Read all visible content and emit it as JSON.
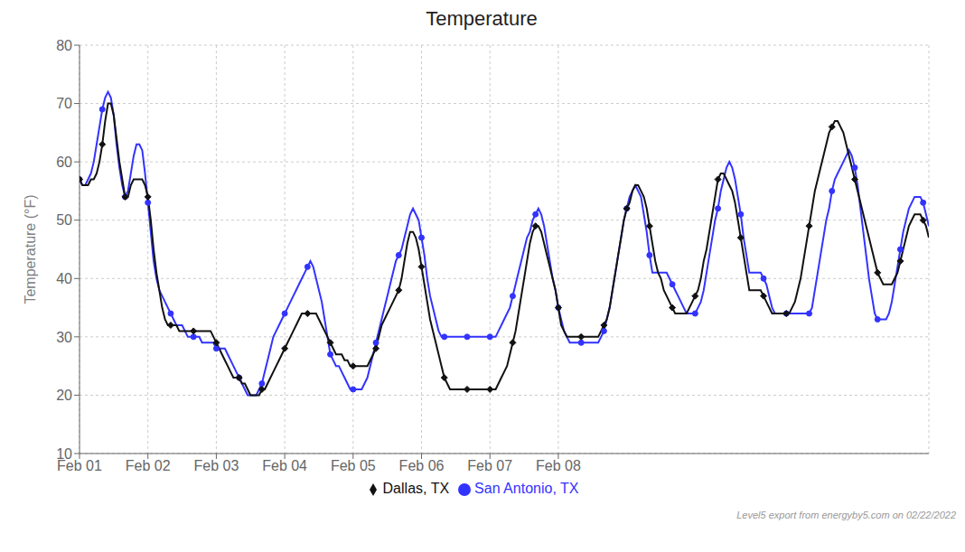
{
  "chart_data": {
    "type": "line",
    "title": "Temperature",
    "y_label": "Temperature (°F)",
    "annotations": [
      "Level5 export from energyby5.com on 02/22/2022"
    ],
    "grid": true,
    "legend": "bottom",
    "xlim": [
      0,
      12.4167
    ],
    "xticks": [
      {
        "value": 0,
        "label": "Feb 01"
      },
      {
        "value": 1,
        "label": "Feb 02"
      },
      {
        "value": 2,
        "label": "Feb 03"
      },
      {
        "value": 3,
        "label": "Feb 04"
      },
      {
        "value": 4,
        "label": "Feb 05"
      },
      {
        "value": 5,
        "label": "Feb 06"
      },
      {
        "value": 6,
        "label": "Feb 07"
      },
      {
        "value": 7,
        "label": "Feb 08"
      }
    ],
    "ylim": [
      10,
      80
    ],
    "yticks": [
      10,
      20,
      30,
      40,
      50,
      60,
      70,
      80
    ],
    "x": [
      0,
      0.0417,
      0.0833,
      0.125,
      0.1667,
      0.2083,
      0.25,
      0.2917,
      0.3333,
      0.375,
      0.4167,
      0.4583,
      0.5,
      0.5417,
      0.5833,
      0.625,
      0.6667,
      0.7083,
      0.75,
      0.7917,
      0.8333,
      0.875,
      0.9167,
      0.9583,
      1,
      1.0417,
      1.0833,
      1.125,
      1.1667,
      1.2083,
      1.25,
      1.2917,
      1.3333,
      1.375,
      1.4167,
      1.4583,
      1.5,
      1.5417,
      1.5833,
      1.625,
      1.6667,
      1.7083,
      1.75,
      1.7917,
      1.8333,
      1.875,
      1.9167,
      1.9583,
      2,
      2.0417,
      2.0833,
      2.125,
      2.1667,
      2.2083,
      2.25,
      2.2917,
      2.3333,
      2.375,
      2.4167,
      2.4583,
      2.5,
      2.5417,
      2.5833,
      2.625,
      2.6667,
      2.7083,
      2.75,
      2.7917,
      2.8333,
      2.875,
      2.9167,
      2.9583,
      3,
      3.0417,
      3.0833,
      3.125,
      3.1667,
      3.2083,
      3.25,
      3.2917,
      3.3333,
      3.375,
      3.4167,
      3.4583,
      3.5,
      3.5417,
      3.5833,
      3.625,
      3.6667,
      3.7083,
      3.75,
      3.7917,
      3.8333,
      3.875,
      3.9167,
      3.9583,
      4,
      4.0417,
      4.0833,
      4.125,
      4.1667,
      4.2083,
      4.25,
      4.2917,
      4.3333,
      4.375,
      4.4167,
      4.4583,
      4.5,
      4.5417,
      4.5833,
      4.625,
      4.6667,
      4.7083,
      4.75,
      4.7917,
      4.8333,
      4.875,
      4.9167,
      4.9583,
      5,
      5.0417,
      5.0833,
      5.125,
      5.1667,
      5.2083,
      5.25,
      5.2917,
      5.3333,
      5.375,
      5.4167,
      5.4583,
      5.5,
      5.5417,
      5.5833,
      5.625,
      5.6667,
      5.7083,
      5.75,
      5.7917,
      5.8333,
      5.875,
      5.9167,
      5.9583,
      6,
      6.0417,
      6.0833,
      6.125,
      6.1667,
      6.2083,
      6.25,
      6.2917,
      6.3333,
      6.375,
      6.4167,
      6.4583,
      6.5,
      6.5417,
      6.5833,
      6.625,
      6.6667,
      6.7083,
      6.75,
      6.7917,
      6.8333,
      6.875,
      6.9167,
      6.9583,
      7,
      7.0417,
      7.0833,
      7.125,
      7.1667,
      7.2083,
      7.25,
      7.2917,
      7.3333,
      7.375,
      7.4167,
      7.4583,
      7.5,
      7.5417,
      7.5833,
      7.625,
      7.6667,
      7.7083,
      7.75,
      7.7917,
      7.8333,
      7.875,
      7.9167,
      7.9583,
      8,
      8.0417,
      8.0833,
      8.125,
      8.1667,
      8.2083,
      8.25,
      8.2917,
      8.3333,
      8.375,
      8.4167,
      8.4583,
      8.5,
      8.5417,
      8.5833,
      8.625,
      8.6667,
      8.7083,
      8.75,
      8.7917,
      8.8333,
      8.875,
      8.9167,
      8.9583,
      9,
      9.0417,
      9.0833,
      9.125,
      9.1667,
      9.2083,
      9.25,
      9.2917,
      9.3333,
      9.375,
      9.4167,
      9.4583,
      9.5,
      9.5417,
      9.5833,
      9.625,
      9.6667,
      9.7083,
      9.75,
      9.7917,
      9.8333,
      9.875,
      9.9167,
      9.9583,
      10,
      10.0417,
      10.0833,
      10.125,
      10.1667,
      10.2083,
      10.25,
      10.2917,
      10.3333,
      10.375,
      10.4167,
      10.4583,
      10.5,
      10.5417,
      10.5833,
      10.625,
      10.6667,
      10.7083,
      10.75,
      10.7917,
      10.8333,
      10.875,
      10.9167,
      10.9583,
      11,
      11.0417,
      11.0833,
      11.125,
      11.1667,
      11.2083,
      11.25,
      11.2917,
      11.3333,
      11.375,
      11.4167,
      11.4583,
      11.5,
      11.5417,
      11.5833,
      11.625,
      11.6667,
      11.7083,
      11.75,
      11.7917,
      11.8333,
      11.875,
      11.9167,
      11.9583,
      12,
      12.0417,
      12.0833,
      12.125,
      12.1667,
      12.2083,
      12.25,
      12.2917,
      12.3333,
      12.375,
      12.4167
    ],
    "series": [
      {
        "name": "San Antonio, TX",
        "color": "#3333ff",
        "marker": "circle",
        "values": [
          57,
          56,
          56,
          57,
          58,
          60,
          63,
          66,
          69,
          71,
          72,
          71,
          68,
          63,
          59,
          56,
          54,
          55,
          58,
          61,
          63,
          63,
          62,
          58,
          53,
          48,
          43,
          40,
          38,
          37,
          36,
          35,
          34,
          33,
          32,
          32,
          32,
          31,
          30,
          30,
          30,
          30,
          30,
          29,
          29,
          29,
          29,
          29,
          28,
          28,
          28,
          28,
          27,
          26,
          25,
          24,
          23,
          22,
          21,
          20,
          20,
          20,
          20,
          21,
          22,
          24,
          26,
          28,
          30,
          31,
          32,
          33,
          34,
          35,
          36,
          37,
          38,
          39,
          40,
          41,
          42,
          43,
          42,
          40,
          38,
          36,
          33,
          30,
          27,
          26,
          25,
          25,
          24,
          23,
          22,
          21,
          21,
          21,
          21,
          21,
          22,
          23,
          25,
          27,
          29,
          31,
          33,
          35,
          37,
          39,
          41,
          43,
          44,
          45,
          47,
          49,
          51,
          52,
          51,
          50,
          47,
          44,
          40,
          37,
          35,
          33,
          31,
          30,
          30,
          30,
          30,
          30,
          30,
          30,
          30,
          30,
          30,
          30,
          30,
          30,
          30,
          30,
          30,
          30,
          30,
          30,
          30,
          31,
          32,
          33,
          34,
          35,
          37,
          39,
          41,
          43,
          45,
          47,
          48,
          50,
          51,
          52,
          51,
          49,
          46,
          43,
          40,
          38,
          35,
          33,
          31,
          30,
          29,
          29,
          29,
          29,
          29,
          29,
          29,
          29,
          29,
          29,
          29,
          30,
          31,
          33,
          35,
          38,
          41,
          44,
          47,
          50,
          52,
          54,
          55,
          56,
          55,
          54,
          51,
          48,
          44,
          41,
          41,
          41,
          41,
          41,
          41,
          40,
          39,
          38,
          37,
          36,
          35,
          34,
          34,
          34,
          34,
          35,
          36,
          38,
          41,
          44,
          47,
          50,
          52,
          55,
          57,
          59,
          60,
          59,
          57,
          54,
          51,
          47,
          44,
          41,
          41,
          41,
          41,
          41,
          40,
          39,
          37,
          35,
          34,
          34,
          34,
          34,
          34,
          34,
          34,
          34,
          34,
          34,
          34,
          34,
          34,
          35,
          38,
          41,
          44,
          47,
          50,
          52,
          55,
          57,
          58,
          59,
          60,
          61,
          62,
          61,
          59,
          56,
          52,
          48,
          44,
          40,
          37,
          34,
          33,
          33,
          33,
          33,
          34,
          36,
          39,
          42,
          45,
          48,
          50,
          52,
          53,
          54,
          54,
          54,
          53,
          51,
          49
        ]
      },
      {
        "name": "Dallas, TX",
        "color": "#111111",
        "marker": "diamond",
        "values": [
          57,
          56,
          56,
          56,
          57,
          57,
          58,
          60,
          63,
          67,
          70,
          70,
          68,
          64,
          60,
          57,
          54,
          54,
          56,
          57,
          57,
          57,
          57,
          56,
          54,
          50,
          45,
          41,
          38,
          35,
          33,
          32,
          32,
          32,
          32,
          31,
          31,
          31,
          31,
          31,
          31,
          31,
          31,
          31,
          31,
          31,
          31,
          30,
          29,
          28,
          27,
          26,
          25,
          24,
          23,
          23,
          23,
          22,
          22,
          21,
          20,
          20,
          20,
          20,
          21,
          21,
          22,
          23,
          24,
          25,
          26,
          27,
          28,
          29,
          30,
          31,
          32,
          33,
          34,
          34,
          34,
          34,
          34,
          34,
          33,
          32,
          31,
          30,
          29,
          28,
          27,
          27,
          27,
          26,
          26,
          25,
          25,
          25,
          25,
          25,
          25,
          25,
          26,
          27,
          28,
          30,
          32,
          33,
          34,
          35,
          36,
          37,
          38,
          40,
          43,
          46,
          48,
          48,
          47,
          45,
          42,
          39,
          36,
          33,
          31,
          29,
          27,
          25,
          23,
          22,
          21,
          21,
          21,
          21,
          21,
          21,
          21,
          21,
          21,
          21,
          21,
          21,
          21,
          21,
          21,
          21,
          21,
          22,
          23,
          24,
          25,
          27,
          29,
          31,
          34,
          37,
          40,
          43,
          46,
          48,
          49,
          49,
          48,
          46,
          44,
          42,
          40,
          38,
          35,
          32,
          31,
          30,
          30,
          30,
          30,
          30,
          30,
          30,
          30,
          30,
          30,
          30,
          30,
          31,
          32,
          33,
          35,
          38,
          41,
          44,
          47,
          50,
          52,
          53,
          55,
          56,
          56,
          55,
          54,
          52,
          49,
          46,
          43,
          41,
          40,
          38,
          37,
          36,
          35,
          34,
          34,
          34,
          34,
          34,
          35,
          36,
          37,
          38,
          40,
          43,
          45,
          48,
          51,
          54,
          57,
          58,
          58,
          57,
          56,
          55,
          53,
          50,
          47,
          44,
          41,
          38,
          38,
          38,
          38,
          38,
          37,
          36,
          35,
          34,
          34,
          34,
          34,
          34,
          34,
          34,
          35,
          36,
          38,
          40,
          43,
          46,
          49,
          52,
          55,
          57,
          59,
          61,
          63,
          65,
          66,
          67,
          67,
          66,
          65,
          63,
          61,
          59,
          57,
          55,
          53,
          51,
          49,
          47,
          45,
          43,
          41,
          40,
          39,
          39,
          39,
          39,
          40,
          41,
          43,
          45,
          47,
          49,
          50,
          51,
          51,
          51,
          50,
          49,
          47
        ]
      }
    ]
  }
}
